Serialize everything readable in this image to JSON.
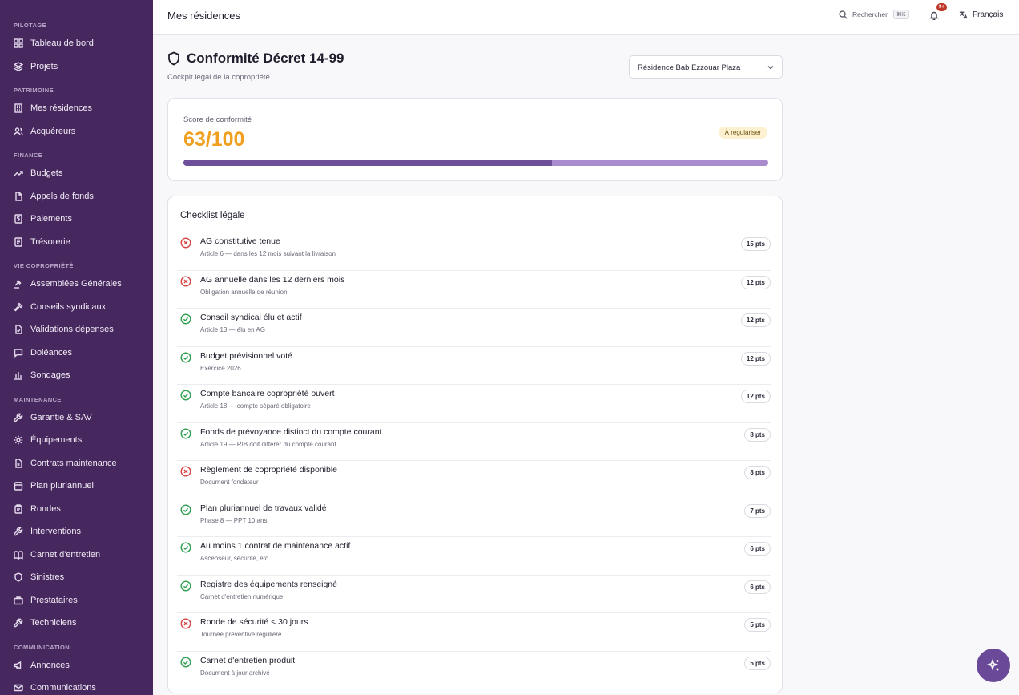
{
  "sidebar": {
    "sections": [
      {
        "title": "PILOTAGE",
        "items": [
          {
            "label": "Tableau de bord",
            "icon": "dashboard-icon"
          },
          {
            "label": "Projets",
            "icon": "layers-icon"
          }
        ]
      },
      {
        "title": "PATRIMOINE",
        "items": [
          {
            "label": "Mes résidences",
            "icon": "building-icon"
          },
          {
            "label": "Acquéreurs",
            "icon": "users-icon"
          }
        ]
      },
      {
        "title": "FINANCE",
        "items": [
          {
            "label": "Budgets",
            "icon": "trending-up-icon"
          },
          {
            "label": "Appels de fonds",
            "icon": "file-icon"
          },
          {
            "label": "Paiements",
            "icon": "dollar-file-icon"
          },
          {
            "label": "Trésorerie",
            "icon": "ledger-icon"
          }
        ]
      },
      {
        "title": "VIE COPROPRIÉTÉ",
        "items": [
          {
            "label": "Assemblées Générales",
            "icon": "gavel-icon"
          },
          {
            "label": "Conseils syndicaux",
            "icon": "hammer-icon"
          },
          {
            "label": "Validations dépenses",
            "icon": "file-check-icon"
          },
          {
            "label": "Doléances",
            "icon": "message-icon"
          },
          {
            "label": "Sondages",
            "icon": "bar-chart-icon"
          }
        ]
      },
      {
        "title": "MAINTENANCE",
        "items": [
          {
            "label": "Garantie & SAV",
            "icon": "wrench-icon"
          },
          {
            "label": "Équipements",
            "icon": "cog-icon"
          },
          {
            "label": "Contrats maintenance",
            "icon": "file-text-icon"
          },
          {
            "label": "Plan pluriannuel",
            "icon": "calendar-icon"
          },
          {
            "label": "Rondes",
            "icon": "clipboard-icon"
          },
          {
            "label": "Interventions",
            "icon": "wrench-icon"
          },
          {
            "label": "Carnet d'entretien",
            "icon": "book-icon"
          },
          {
            "label": "Sinistres",
            "icon": "shield-icon"
          },
          {
            "label": "Prestataires",
            "icon": "briefcase-icon"
          },
          {
            "label": "Techniciens",
            "icon": "wrench-icon"
          }
        ]
      },
      {
        "title": "COMMUNICATION",
        "items": [
          {
            "label": "Annonces",
            "icon": "megaphone-icon"
          },
          {
            "label": "Communications",
            "icon": "mail-icon"
          }
        ]
      }
    ]
  },
  "header": {
    "title": "Mes résidences",
    "search_label": "Rechercher",
    "search_shortcut": "⌘K",
    "notification_count": "9+",
    "language": "Français"
  },
  "page": {
    "title": "Conformité Décret 14-99",
    "subtitle": "Cockpit légal de la copropriété",
    "residence_select": "Résidence Bab Ezzouar Plaza"
  },
  "score": {
    "label": "Score de conformité",
    "value": "63/100",
    "progress_fraction": 0.63,
    "status": "À régulariser",
    "status_color": "#f0a020",
    "bar_fill_color": "#6d4f9a",
    "bar_track_color": "#a98ccd"
  },
  "checklist": {
    "title": "Checklist légale",
    "colors": {
      "ok": "#2e9e4f",
      "fail": "#d64545"
    },
    "items": [
      {
        "label": "AG constitutive tenue",
        "desc": "Article 6 — dans les 12 mois suivant la livraison",
        "points": "15 pts",
        "status": "fail"
      },
      {
        "label": "AG annuelle dans les 12 derniers mois",
        "desc": "Obligation annuelle de réunion",
        "points": "12 pts",
        "status": "fail"
      },
      {
        "label": "Conseil syndical élu et actif",
        "desc": "Article 13 — élu en AG",
        "points": "12 pts",
        "status": "ok"
      },
      {
        "label": "Budget prévisionnel voté",
        "desc": "Exercice 2026",
        "points": "12 pts",
        "status": "ok"
      },
      {
        "label": "Compte bancaire copropriété ouvert",
        "desc": "Article 18 — compte séparé obligatoire",
        "points": "12 pts",
        "status": "ok"
      },
      {
        "label": "Fonds de prévoyance distinct du compte courant",
        "desc": "Article 19 — RIB doit différer du compte courant",
        "points": "8 pts",
        "status": "ok"
      },
      {
        "label": "Règlement de copropriété disponible",
        "desc": "Document fondateur",
        "points": "8 pts",
        "status": "fail"
      },
      {
        "label": "Plan pluriannuel de travaux validé",
        "desc": "Phase 8 — PPT 10 ans",
        "points": "7 pts",
        "status": "ok"
      },
      {
        "label": "Au moins 1 contrat de maintenance actif",
        "desc": "Ascenseur, sécurité, etc.",
        "points": "6 pts",
        "status": "ok"
      },
      {
        "label": "Registre des équipements renseigné",
        "desc": "Carnet d'entretien numérique",
        "points": "6 pts",
        "status": "ok"
      },
      {
        "label": "Ronde de sécurité < 30 jours",
        "desc": "Tournée préventive régulière",
        "points": "5 pts",
        "status": "fail"
      },
      {
        "label": "Carnet d'entretien produit",
        "desc": "Document à jour archivé",
        "points": "5 pts",
        "status": "ok"
      }
    ]
  }
}
